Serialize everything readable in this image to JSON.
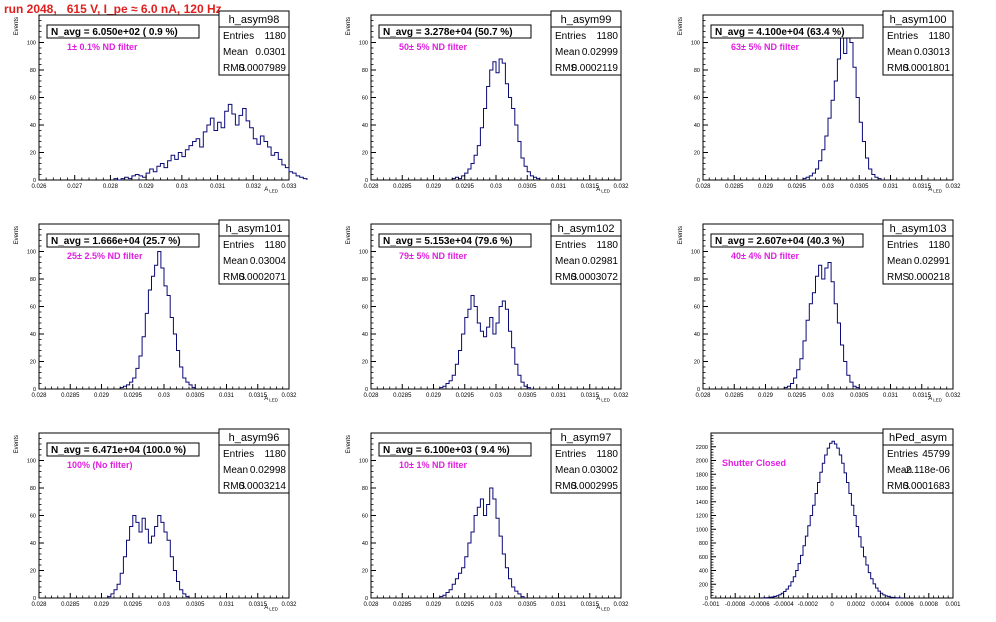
{
  "header": {
    "run_label": "run 2048,",
    "rest": "615 V, I_pe ≈ 6.0 nA, 120 Hz"
  },
  "colors": {
    "hist_line": "#0a0a78",
    "annotation": "#e020e0",
    "header": "#e0201e",
    "axis": "#000000"
  },
  "chart_data": [
    {
      "type": "histogram",
      "stats_title": "h_asym98",
      "navg": "N_avg = 6.050e+02 ( 0.9 %)",
      "annotation": "1± 0.1% ND filter",
      "stats": {
        "Entries": "1180",
        "Mean": "0.0301",
        "RMS": "0.0007989"
      },
      "ylabel": "Events",
      "xlabel": "A_LED",
      "xlim": [
        0.026,
        0.033
      ],
      "ylim": [
        0,
        120
      ],
      "xticks": [
        0.026,
        0.027,
        0.028,
        0.029,
        0.03,
        0.031,
        0.032,
        0.033
      ],
      "xticklabels": [
        "0.026",
        "0.027",
        "0.028",
        "0.029",
        "0.03",
        "0.031",
        "0.032",
        "0.033"
      ],
      "yticks": [
        0,
        20,
        40,
        60,
        80,
        100
      ],
      "yticklabels": [
        "0",
        "20",
        "40",
        "60",
        "80",
        "100"
      ],
      "bins_start": 0.0281,
      "bin_width": 0.0001,
      "values": [
        1,
        0,
        1,
        2,
        1,
        3,
        4,
        3,
        2,
        5,
        8,
        6,
        10,
        12,
        9,
        14,
        18,
        15,
        20,
        17,
        22,
        25,
        28,
        30,
        24,
        35,
        40,
        45,
        36,
        42,
        38,
        50,
        55,
        48,
        40,
        47,
        52,
        43,
        38,
        30,
        26,
        32,
        28,
        24,
        18,
        20,
        15,
        11,
        9,
        6,
        5,
        3,
        2,
        1
      ]
    },
    {
      "type": "histogram",
      "stats_title": "h_asym99",
      "navg": "N_avg = 3.278e+04 (50.7 %)",
      "annotation": "50± 5% ND filter",
      "stats": {
        "Entries": "1180",
        "Mean": "0.02999",
        "RMS": "0.0002119"
      },
      "ylabel": "Events",
      "xlabel": "A_LED",
      "xlim": [
        0.028,
        0.032
      ],
      "ylim": [
        0,
        120
      ],
      "xticks": [
        0.028,
        0.0285,
        0.029,
        0.0295,
        0.03,
        0.0305,
        0.031,
        0.0315,
        0.032
      ],
      "xticklabels": [
        "0.028",
        "0.0285",
        "0.029",
        "0.0295",
        "0.03",
        "0.0305",
        "0.031",
        "0.0315",
        "0.032"
      ],
      "yticks": [
        0,
        20,
        40,
        60,
        80,
        100
      ],
      "yticklabels": [
        "0",
        "20",
        "40",
        "60",
        "80",
        "100"
      ],
      "bins_start": 0.0293,
      "bin_width": 5e-05,
      "values": [
        1,
        2,
        1,
        3,
        5,
        8,
        12,
        18,
        25,
        38,
        52,
        68,
        80,
        86,
        78,
        88,
        85,
        70,
        60,
        52,
        40,
        28,
        16,
        10,
        6,
        3,
        2,
        1
      ]
    },
    {
      "type": "histogram",
      "stats_title": "h_asym100",
      "navg": "N_avg = 4.100e+04 (63.4 %)",
      "annotation": "63± 5% ND filter",
      "stats": {
        "Entries": "1180",
        "Mean": "0.03013",
        "RMS": "0.0001801"
      },
      "ylabel": "Events",
      "xlabel": "A_LED",
      "xlim": [
        0.028,
        0.032
      ],
      "ylim": [
        0,
        120
      ],
      "xticks": [
        0.028,
        0.0285,
        0.029,
        0.0295,
        0.03,
        0.0305,
        0.031,
        0.0315,
        0.032
      ],
      "xticklabels": [
        "0.028",
        "0.0285",
        "0.029",
        "0.0295",
        "0.03",
        "0.0305",
        "0.031",
        "0.0315",
        "0.032"
      ],
      "yticks": [
        0,
        20,
        40,
        60,
        80,
        100
      ],
      "yticklabels": [
        "0",
        "20",
        "40",
        "60",
        "80",
        "100"
      ],
      "bins_start": 0.0296,
      "bin_width": 5e-05,
      "values": [
        1,
        2,
        3,
        5,
        8,
        14,
        22,
        32,
        45,
        58,
        72,
        88,
        105,
        92,
        108,
        100,
        82,
        60,
        42,
        28,
        16,
        8,
        4,
        2,
        1
      ]
    },
    {
      "type": "histogram",
      "stats_title": "h_asym101",
      "navg": "N_avg = 1.666e+04 (25.7 %)",
      "annotation": "25± 2.5% ND filter",
      "stats": {
        "Entries": "1180",
        "Mean": "0.03004",
        "RMS": "0.0002071"
      },
      "ylabel": "Events",
      "xlabel": "A_LED",
      "xlim": [
        0.028,
        0.032
      ],
      "ylim": [
        0,
        120
      ],
      "xticks": [
        0.028,
        0.0285,
        0.029,
        0.0295,
        0.03,
        0.0305,
        0.031,
        0.0315,
        0.032
      ],
      "xticklabels": [
        "0.028",
        "0.0285",
        "0.029",
        "0.0295",
        "0.03",
        "0.0305",
        "0.031",
        "0.0315",
        "0.032"
      ],
      "yticks": [
        0,
        20,
        40,
        60,
        80,
        100
      ],
      "yticklabels": [
        "0",
        "20",
        "40",
        "60",
        "80",
        "100"
      ],
      "bins_start": 0.0293,
      "bin_width": 5e-05,
      "values": [
        1,
        2,
        3,
        5,
        8,
        15,
        24,
        38,
        55,
        72,
        82,
        90,
        100,
        88,
        75,
        68,
        52,
        40,
        28,
        16,
        8,
        5,
        3,
        1
      ]
    },
    {
      "type": "histogram",
      "stats_title": "h_asym102",
      "navg": "N_avg = 5.153e+04 (79.6 %)",
      "annotation": "79± 5% ND filter",
      "stats": {
        "Entries": "1180",
        "Mean": "0.02981",
        "RMS": "0.0003072"
      },
      "ylabel": "Events",
      "xlabel": "A_LED",
      "xlim": [
        0.028,
        0.032
      ],
      "ylim": [
        0,
        120
      ],
      "xticks": [
        0.028,
        0.0285,
        0.029,
        0.0295,
        0.03,
        0.0305,
        0.031,
        0.0315,
        0.032
      ],
      "xticklabels": [
        "0.028",
        "0.0285",
        "0.029",
        "0.0295",
        "0.03",
        "0.0305",
        "0.031",
        "0.0315",
        "0.032"
      ],
      "yticks": [
        0,
        20,
        40,
        60,
        80,
        100
      ],
      "yticklabels": [
        "0",
        "20",
        "40",
        "60",
        "80",
        "100"
      ],
      "bins_start": 0.0291,
      "bin_width": 5e-05,
      "values": [
        1,
        2,
        4,
        6,
        10,
        18,
        28,
        40,
        52,
        58,
        68,
        60,
        48,
        42,
        38,
        45,
        52,
        40,
        48,
        60,
        64,
        58,
        42,
        30,
        18,
        10,
        5,
        2,
        1
      ]
    },
    {
      "type": "histogram",
      "stats_title": "h_asym103",
      "navg": "N_avg = 2.607e+04 (40.3 %)",
      "annotation": "40± 4% ND filter",
      "stats": {
        "Entries": "1180",
        "Mean": "0.02991",
        "RMS": "0.000218"
      },
      "ylabel": "Events",
      "xlabel": "A_LED",
      "xlim": [
        0.028,
        0.032
      ],
      "ylim": [
        0,
        120
      ],
      "xticks": [
        0.028,
        0.0285,
        0.029,
        0.0295,
        0.03,
        0.0305,
        0.031,
        0.0315,
        0.032
      ],
      "xticklabels": [
        "0.028",
        "0.0285",
        "0.029",
        "0.0295",
        "0.03",
        "0.0305",
        "0.031",
        "0.0315",
        "0.032"
      ],
      "yticks": [
        0,
        20,
        40,
        60,
        80,
        100
      ],
      "yticklabels": [
        "0",
        "20",
        "40",
        "60",
        "80",
        "100"
      ],
      "bins_start": 0.0293,
      "bin_width": 5e-05,
      "values": [
        1,
        2,
        4,
        8,
        14,
        22,
        35,
        50,
        62,
        70,
        82,
        90,
        80,
        88,
        92,
        78,
        62,
        48,
        32,
        20,
        10,
        5,
        2,
        1
      ]
    },
    {
      "type": "histogram",
      "stats_title": "h_asym96",
      "navg": "N_avg = 6.471e+04 (100.0 %)",
      "annotation": "100% (No filter)",
      "stats": {
        "Entries": "1180",
        "Mean": "0.02998",
        "RMS": "0.0003214"
      },
      "ylabel": "Events",
      "xlabel": "A_LED",
      "xlim": [
        0.028,
        0.032
      ],
      "ylim": [
        0,
        120
      ],
      "xticks": [
        0.028,
        0.0285,
        0.029,
        0.0295,
        0.03,
        0.0305,
        0.031,
        0.0315,
        0.032
      ],
      "xticklabels": [
        "0.028",
        "0.0285",
        "0.029",
        "0.0295",
        "0.03",
        "0.0305",
        "0.031",
        "0.0315",
        "0.032"
      ],
      "yticks": [
        0,
        20,
        40,
        60,
        80,
        100
      ],
      "yticklabels": [
        "0",
        "20",
        "40",
        "60",
        "80",
        "100"
      ],
      "bins_start": 0.0291,
      "bin_width": 5e-05,
      "values": [
        1,
        3,
        6,
        10,
        18,
        30,
        42,
        52,
        60,
        55,
        48,
        58,
        50,
        40,
        45,
        52,
        60,
        55,
        48,
        42,
        30,
        20,
        12,
        6,
        3,
        1
      ]
    },
    {
      "type": "histogram",
      "stats_title": "h_asym97",
      "navg": "N_avg = 6.100e+03 ( 9.4 %)",
      "annotation": "10± 1% ND filter",
      "stats": {
        "Entries": "1180",
        "Mean": "0.03002",
        "RMS": "0.0002995"
      },
      "ylabel": "Events",
      "xlabel": "A_LED",
      "xlim": [
        0.028,
        0.032
      ],
      "ylim": [
        0,
        120
      ],
      "xticks": [
        0.028,
        0.0285,
        0.029,
        0.0295,
        0.03,
        0.0305,
        0.031,
        0.0315,
        0.032
      ],
      "xticklabels": [
        "0.028",
        "0.0285",
        "0.029",
        "0.0295",
        "0.03",
        "0.0305",
        "0.031",
        "0.0315",
        "0.032"
      ],
      "yticks": [
        0,
        20,
        40,
        60,
        80,
        100
      ],
      "yticklabels": [
        "0",
        "20",
        "40",
        "60",
        "80",
        "100"
      ],
      "bins_start": 0.0291,
      "bin_width": 5e-05,
      "values": [
        1,
        2,
        4,
        6,
        10,
        14,
        18,
        22,
        30,
        40,
        48,
        60,
        66,
        72,
        60,
        68,
        80,
        72,
        58,
        45,
        32,
        22,
        14,
        8,
        5,
        3,
        1
      ]
    },
    {
      "type": "histogram",
      "stats_title": "hPed_asym",
      "navg": "",
      "annotation": "Shutter Closed",
      "stats": {
        "Entries": "45799",
        "Mean": "-2.118e-06",
        "RMS": "0.0001683"
      },
      "ylabel": "",
      "xlabel": "",
      "xlim": [
        -0.001,
        0.001
      ],
      "ylim": [
        0,
        2400
      ],
      "xticks": [
        -0.001,
        -0.0008,
        -0.0006,
        -0.0004,
        -0.0002,
        0,
        0.0002,
        0.0004,
        0.0006,
        0.0008,
        0.001
      ],
      "xticklabels": [
        "-0.001",
        "-0.0008",
        "-0.0006",
        "-0.0004",
        "-0.0002",
        "0",
        "0.0002",
        "0.0004",
        "0.0006",
        "0.0008",
        "0.001"
      ],
      "yticks": [
        0,
        200,
        400,
        600,
        800,
        1000,
        1200,
        1400,
        1600,
        1800,
        2000,
        2200
      ],
      "yticklabels": [
        "0",
        "200",
        "400",
        "600",
        "800",
        "1000",
        "1200",
        "1400",
        "1600",
        "1800",
        "2000",
        "2200"
      ],
      "bins_start": -0.00058,
      "bin_width": 2e-05,
      "values": [
        2,
        4,
        6,
        10,
        15,
        22,
        32,
        48,
        68,
        95,
        130,
        175,
        235,
        310,
        400,
        500,
        620,
        760,
        900,
        1050,
        1200,
        1350,
        1520,
        1680,
        1830,
        1960,
        2080,
        2180,
        2250,
        2280,
        2240,
        2180,
        2080,
        1960,
        1820,
        1680,
        1520,
        1350,
        1200,
        1040,
        890,
        740,
        600,
        480,
        370,
        280,
        205,
        145,
        100,
        68,
        45,
        30,
        20,
        12,
        8,
        5,
        3,
        2
      ]
    }
  ]
}
